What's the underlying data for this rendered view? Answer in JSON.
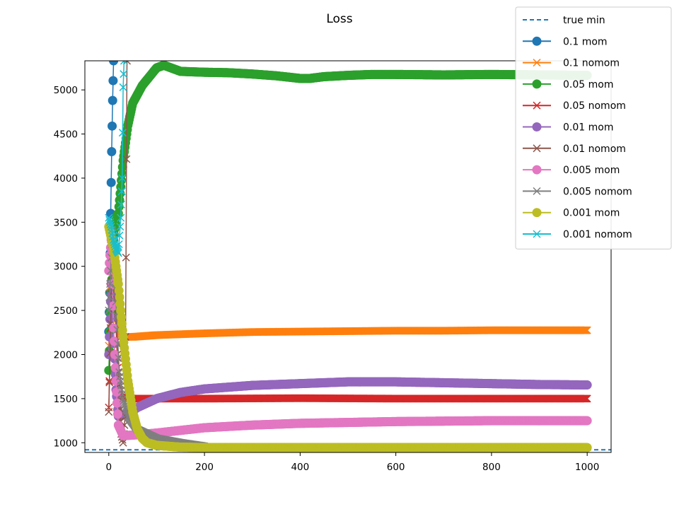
{
  "chart_data": {
    "type": "line",
    "title": "Loss",
    "xlabel": "",
    "ylabel": "",
    "xlim": [
      -50,
      1050
    ],
    "ylim": [
      890,
      5330
    ],
    "x_ticks": [
      0,
      200,
      400,
      600,
      800,
      1000
    ],
    "y_ticks": [
      1000,
      1500,
      2000,
      2500,
      3000,
      3500,
      4000,
      4500,
      5000
    ],
    "grid": false,
    "legend_position": "top-right",
    "reference_lines": [
      {
        "name": "true min",
        "y": 920,
        "style": "dashed",
        "color": "#1f77b4"
      }
    ],
    "series": [
      {
        "name": "0.1 mom",
        "color": "#1f77b4",
        "marker": "circle",
        "points": [
          [
            0,
            2260
          ],
          [
            2,
            2700
          ],
          [
            4,
            3600
          ],
          [
            6,
            4300
          ],
          [
            8,
            4880
          ],
          [
            10,
            5330
          ]
        ]
      },
      {
        "name": "0.1 nomom",
        "color": "#ff7f0e",
        "marker": "x",
        "points": [
          [
            0,
            2100
          ],
          [
            3,
            3100
          ],
          [
            6,
            3500
          ],
          [
            10,
            3000
          ],
          [
            15,
            2500
          ],
          [
            20,
            2300
          ],
          [
            30,
            2200
          ],
          [
            50,
            2200
          ],
          [
            100,
            2220
          ],
          [
            200,
            2240
          ],
          [
            300,
            2255
          ],
          [
            400,
            2260
          ],
          [
            500,
            2265
          ],
          [
            600,
            2270
          ],
          [
            700,
            2270
          ],
          [
            800,
            2275
          ],
          [
            900,
            2275
          ],
          [
            1000,
            2275
          ]
        ]
      },
      {
        "name": "0.05 mom",
        "color": "#2ca02c",
        "marker": "circle",
        "points": [
          [
            0,
            1820
          ],
          [
            5,
            2700
          ],
          [
            10,
            3300
          ],
          [
            15,
            3550
          ],
          [
            20,
            3600
          ],
          [
            25,
            3900
          ],
          [
            30,
            4200
          ],
          [
            40,
            4600
          ],
          [
            50,
            4850
          ],
          [
            70,
            5050
          ],
          [
            100,
            5250
          ],
          [
            115,
            5280
          ],
          [
            130,
            5250
          ],
          [
            150,
            5210
          ],
          [
            200,
            5200
          ],
          [
            250,
            5195
          ],
          [
            300,
            5180
          ],
          [
            350,
            5160
          ],
          [
            400,
            5130
          ],
          [
            420,
            5130
          ],
          [
            450,
            5150
          ],
          [
            500,
            5165
          ],
          [
            550,
            5175
          ],
          [
            600,
            5175
          ],
          [
            700,
            5170
          ],
          [
            800,
            5175
          ],
          [
            900,
            5170
          ],
          [
            1000,
            5165
          ]
        ]
      },
      {
        "name": "0.05 nomom",
        "color": "#d62728",
        "marker": "x",
        "points": [
          [
            0,
            1400
          ],
          [
            5,
            2600
          ],
          [
            10,
            3200
          ],
          [
            15,
            2300
          ],
          [
            20,
            1700
          ],
          [
            25,
            1500
          ],
          [
            30,
            1520
          ],
          [
            50,
            1500
          ],
          [
            100,
            1500
          ],
          [
            200,
            1500
          ],
          [
            400,
            1505
          ],
          [
            600,
            1500
          ],
          [
            800,
            1500
          ],
          [
            1000,
            1500
          ]
        ]
      },
      {
        "name": "0.01 mom",
        "color": "#9467bd",
        "marker": "circle",
        "points": [
          [
            0,
            2000
          ],
          [
            5,
            2800
          ],
          [
            10,
            2300
          ],
          [
            15,
            1600
          ],
          [
            20,
            1300
          ],
          [
            40,
            1330
          ],
          [
            60,
            1400
          ],
          [
            100,
            1500
          ],
          [
            150,
            1570
          ],
          [
            200,
            1610
          ],
          [
            300,
            1650
          ],
          [
            400,
            1670
          ],
          [
            500,
            1690
          ],
          [
            600,
            1690
          ],
          [
            700,
            1680
          ],
          [
            800,
            1670
          ],
          [
            900,
            1660
          ],
          [
            1000,
            1655
          ]
        ]
      },
      {
        "name": "0.01 nomom",
        "color": "#8c564b",
        "marker": "x",
        "points": [
          [
            0,
            1350
          ],
          [
            8,
            3350
          ],
          [
            14,
            2600
          ],
          [
            20,
            1800
          ],
          [
            26,
            1100
          ],
          [
            30,
            1000
          ],
          [
            34,
            1300
          ],
          [
            36,
            3100
          ],
          [
            38,
            5330
          ]
        ]
      },
      {
        "name": "0.005 mom",
        "color": "#e377c2",
        "marker": "circle",
        "points": [
          [
            0,
            2950
          ],
          [
            5,
            3300
          ],
          [
            10,
            2300
          ],
          [
            15,
            1700
          ],
          [
            20,
            1200
          ],
          [
            30,
            1080
          ],
          [
            60,
            1090
          ],
          [
            100,
            1110
          ],
          [
            150,
            1140
          ],
          [
            200,
            1170
          ],
          [
            300,
            1200
          ],
          [
            400,
            1220
          ],
          [
            600,
            1240
          ],
          [
            800,
            1250
          ],
          [
            1000,
            1250
          ]
        ]
      },
      {
        "name": "0.005 nomom",
        "color": "#7f7f7f",
        "marker": "x",
        "points": [
          [
            0,
            2500
          ],
          [
            8,
            3400
          ],
          [
            15,
            2600
          ],
          [
            22,
            1800
          ],
          [
            30,
            1500
          ],
          [
            40,
            1300
          ],
          [
            60,
            1150
          ],
          [
            100,
            1050
          ],
          [
            150,
            1000
          ],
          [
            200,
            960
          ]
        ]
      },
      {
        "name": "0.001 mom",
        "color": "#bcbd22",
        "marker": "circle",
        "points": [
          [
            0,
            3450
          ],
          [
            10,
            3200
          ],
          [
            20,
            2800
          ],
          [
            30,
            2200
          ],
          [
            40,
            1700
          ],
          [
            50,
            1350
          ],
          [
            60,
            1150
          ],
          [
            70,
            1050
          ],
          [
            80,
            1000
          ],
          [
            100,
            970
          ],
          [
            150,
            950
          ],
          [
            200,
            945
          ],
          [
            300,
            945
          ],
          [
            400,
            945
          ],
          [
            600,
            945
          ],
          [
            800,
            945
          ],
          [
            1000,
            945
          ]
        ]
      },
      {
        "name": "0.001 nomom",
        "color": "#17becf",
        "marker": "x",
        "points": [
          [
            0,
            3550
          ],
          [
            5,
            3450
          ],
          [
            10,
            3300
          ],
          [
            15,
            3200
          ],
          [
            20,
            3150
          ],
          [
            25,
            3550
          ],
          [
            28,
            4000
          ],
          [
            30,
            5030
          ],
          [
            32,
            5330
          ]
        ]
      }
    ]
  }
}
